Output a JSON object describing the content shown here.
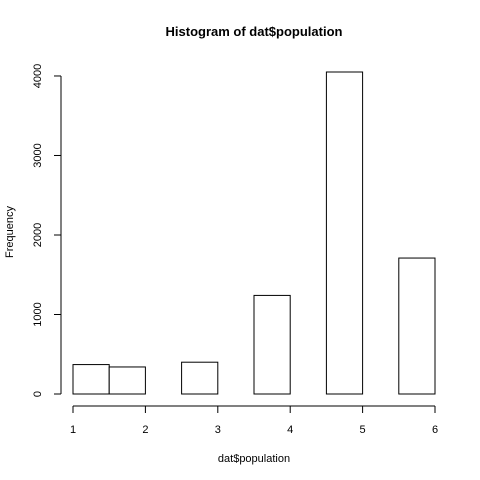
{
  "chart_data": {
    "type": "bar",
    "title": "Histogram of dat$population",
    "xlabel": "dat$population",
    "ylabel": "Frequency",
    "xlim": [
      1,
      6
    ],
    "ylim": [
      0,
      4050
    ],
    "bar_fill": "#ffffff",
    "bar_stroke": "#000000",
    "grid": false,
    "x_ticks": [
      1,
      2,
      3,
      4,
      5,
      6
    ],
    "y_ticks": [
      0,
      1000,
      2000,
      3000,
      4000
    ],
    "bins": [
      {
        "x0": 1.0,
        "x1": 1.5,
        "value": 370
      },
      {
        "x0": 1.5,
        "x1": 2.0,
        "value": 340
      },
      {
        "x0": 2.0,
        "x1": 2.5,
        "value": 0
      },
      {
        "x0": 2.5,
        "x1": 3.0,
        "value": 400
      },
      {
        "x0": 3.0,
        "x1": 3.5,
        "value": 0
      },
      {
        "x0": 3.5,
        "x1": 4.0,
        "value": 1240
      },
      {
        "x0": 4.0,
        "x1": 4.5,
        "value": 0
      },
      {
        "x0": 4.5,
        "x1": 5.0,
        "value": 4050
      },
      {
        "x0": 5.0,
        "x1": 5.5,
        "value": 0
      },
      {
        "x0": 5.5,
        "x1": 6.0,
        "value": 1710
      }
    ]
  }
}
